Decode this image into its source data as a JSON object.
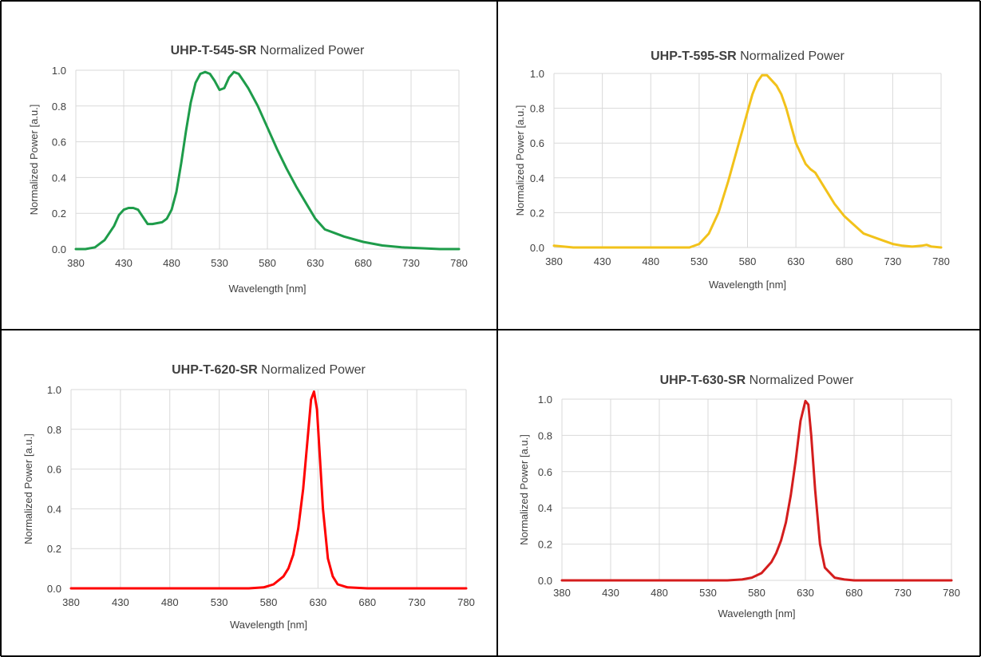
{
  "panels": [
    {
      "title_bold": "UHP-T-545-SR",
      "title_rest": " Normalized Power",
      "color": "#1e9c4a"
    },
    {
      "title_bold": "UHP-T-595-SR",
      "title_rest": " Normalized Power",
      "color": "#f2c21a"
    },
    {
      "title_bold": "UHP-T-620-SR",
      "title_rest": " Normalized Power",
      "color": "#ff0000"
    },
    {
      "title_bold": "UHP-T-630-SR",
      "title_rest": " Normalized Power",
      "color": "#d41d1d"
    }
  ],
  "chart_data": [
    {
      "type": "line",
      "title": "UHP-T-545-SR Normalized Power",
      "xlabel": "Wavelength [nm]",
      "ylabel": "Normalized Power [a.u.]",
      "xlim": [
        380,
        780
      ],
      "ylim": [
        0,
        1.0
      ],
      "xticks": [
        "380",
        "430",
        "480",
        "530",
        "580",
        "630",
        "680",
        "730",
        "780"
      ],
      "yticks": [
        "0.0",
        "0.2",
        "0.4",
        "0.6",
        "0.8",
        "1.0"
      ],
      "grid": true,
      "series": [
        {
          "color": "#1e9c4a",
          "x": [
            380,
            390,
            400,
            410,
            420,
            425,
            430,
            435,
            440,
            445,
            450,
            455,
            460,
            465,
            470,
            475,
            480,
            485,
            490,
            495,
            500,
            505,
            510,
            515,
            520,
            525,
            530,
            535,
            540,
            545,
            550,
            555,
            560,
            570,
            580,
            590,
            600,
            610,
            620,
            630,
            640,
            650,
            660,
            680,
            700,
            720,
            740,
            760,
            780
          ],
          "y": [
            0.0,
            0.0,
            0.01,
            0.05,
            0.13,
            0.19,
            0.22,
            0.23,
            0.23,
            0.22,
            0.18,
            0.14,
            0.14,
            0.145,
            0.15,
            0.17,
            0.22,
            0.32,
            0.48,
            0.66,
            0.82,
            0.93,
            0.98,
            0.99,
            0.98,
            0.94,
            0.89,
            0.9,
            0.96,
            0.99,
            0.98,
            0.94,
            0.9,
            0.8,
            0.68,
            0.56,
            0.45,
            0.35,
            0.26,
            0.17,
            0.11,
            0.09,
            0.07,
            0.04,
            0.02,
            0.01,
            0.005,
            0.0,
            0.0
          ]
        }
      ]
    },
    {
      "type": "line",
      "title": "UHP-T-595-SR Normalized Power",
      "xlabel": "Wavelength [nm]",
      "ylabel": "Normalized Power [a.u.]",
      "xlim": [
        380,
        780
      ],
      "ylim": [
        0,
        1.0
      ],
      "xticks": [
        "380",
        "430",
        "480",
        "530",
        "580",
        "630",
        "680",
        "730",
        "780"
      ],
      "yticks": [
        "0.0",
        "0.2",
        "0.4",
        "0.6",
        "0.8",
        "1.0"
      ],
      "grid": true,
      "series": [
        {
          "color": "#f2c21a",
          "x": [
            380,
            400,
            450,
            500,
            520,
            530,
            540,
            550,
            560,
            570,
            580,
            585,
            590,
            595,
            600,
            605,
            610,
            615,
            620,
            630,
            640,
            645,
            650,
            660,
            670,
            680,
            690,
            700,
            710,
            720,
            730,
            740,
            750,
            760,
            765,
            770,
            780
          ],
          "y": [
            0.01,
            0.0,
            0.0,
            0.0,
            0.0,
            0.02,
            0.08,
            0.2,
            0.38,
            0.58,
            0.78,
            0.88,
            0.95,
            0.99,
            0.99,
            0.96,
            0.93,
            0.88,
            0.8,
            0.6,
            0.48,
            0.45,
            0.43,
            0.34,
            0.25,
            0.18,
            0.13,
            0.08,
            0.06,
            0.04,
            0.02,
            0.01,
            0.005,
            0.01,
            0.015,
            0.005,
            0.0
          ]
        }
      ]
    },
    {
      "type": "line",
      "title": "UHP-T-620-SR Normalized Power",
      "xlabel": "Wavelength [nm]",
      "ylabel": "Normalized Power [a.u.]",
      "xlim": [
        380,
        780
      ],
      "ylim": [
        0,
        1.0
      ],
      "xticks": [
        "380",
        "430",
        "480",
        "530",
        "580",
        "630",
        "680",
        "730",
        "780"
      ],
      "yticks": [
        "0.0",
        "0.2",
        "0.4",
        "0.6",
        "0.8",
        "1.0"
      ],
      "grid": true,
      "series": [
        {
          "color": "#ff0000",
          "x": [
            380,
            500,
            560,
            575,
            585,
            595,
            600,
            605,
            610,
            615,
            620,
            623,
            626,
            629,
            632,
            635,
            640,
            645,
            650,
            660,
            680,
            780
          ],
          "y": [
            0.0,
            0.0,
            0.0,
            0.005,
            0.02,
            0.06,
            0.1,
            0.17,
            0.3,
            0.5,
            0.78,
            0.95,
            0.99,
            0.9,
            0.65,
            0.4,
            0.15,
            0.06,
            0.02,
            0.005,
            0.0,
            0.0
          ]
        }
      ]
    },
    {
      "type": "line",
      "title": "UHP-T-630-SR Normalized Power",
      "xlabel": "Wavelength [nm]",
      "ylabel": "Normalized Power [a.u.]",
      "xlim": [
        380,
        780
      ],
      "ylim": [
        0,
        1.0
      ],
      "xticks": [
        "380",
        "430",
        "480",
        "530",
        "580",
        "630",
        "680",
        "730",
        "780"
      ],
      "yticks": [
        "0.0",
        "0.2",
        "0.4",
        "0.6",
        "0.8",
        "1.0"
      ],
      "grid": true,
      "series": [
        {
          "color": "#d41d1d",
          "x": [
            380,
            500,
            550,
            565,
            575,
            585,
            595,
            600,
            605,
            610,
            615,
            620,
            625,
            630,
            633,
            636,
            640,
            645,
            650,
            660,
            670,
            680,
            780
          ],
          "y": [
            0.0,
            0.0,
            0.0,
            0.005,
            0.015,
            0.04,
            0.1,
            0.15,
            0.22,
            0.32,
            0.47,
            0.66,
            0.88,
            0.99,
            0.97,
            0.8,
            0.5,
            0.2,
            0.07,
            0.015,
            0.005,
            0.0,
            0.0
          ]
        }
      ]
    }
  ]
}
